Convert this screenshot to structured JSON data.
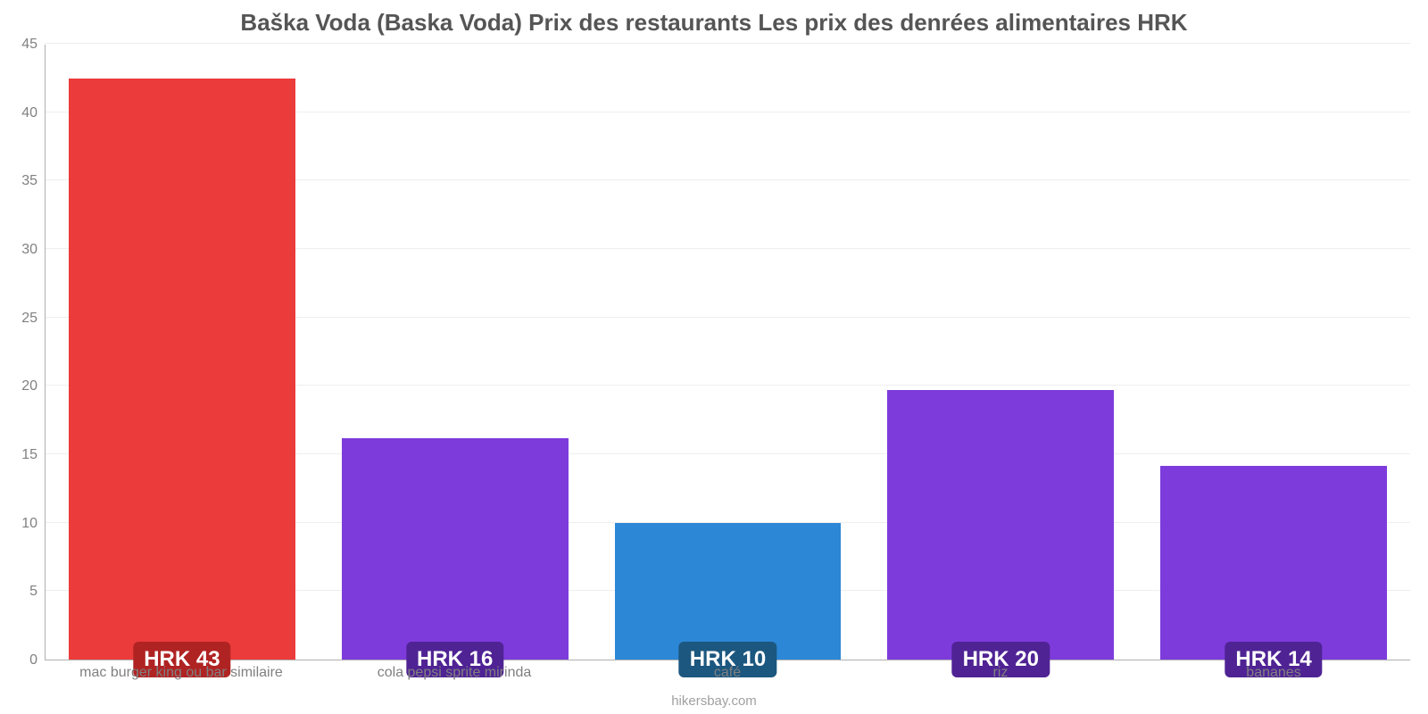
{
  "chart": {
    "type": "bar",
    "title": "Baška Voda (Baska Voda) Prix des restaurants Les prix des denrées alimentaires HRK",
    "title_color": "#555555",
    "title_fontsize": 26,
    "background_color": "#ffffff",
    "grid_color": "#eeeeee",
    "axis_color": "#b0b0b0",
    "label_color": "#808080",
    "label_fontsize": 16,
    "ylim": [
      0,
      45
    ],
    "ytick_step": 5,
    "yticks": [
      0,
      5,
      10,
      15,
      20,
      25,
      30,
      35,
      40,
      45
    ],
    "bar_width": 0.83,
    "categories": [
      "mac burger king ou bar similaire",
      "cola pepsi sprite mirinda",
      "café",
      "riz",
      "bananes"
    ],
    "values": [
      42.5,
      16.2,
      10.0,
      19.7,
      14.2
    ],
    "value_labels": [
      "HRK 43",
      "HRK 16",
      "HRK 10",
      "HRK 20",
      "HRK 14"
    ],
    "bar_colors": [
      "#ec3b3b",
      "#7e3bdc",
      "#2c87d6",
      "#7e3bdc",
      "#7e3bdc"
    ],
    "badge_colors": [
      "#b02323",
      "#4f2394",
      "#1c577f",
      "#4f2394",
      "#4f2394"
    ],
    "badge_text_color": "#ffffff",
    "badge_fontsize": 24,
    "attribution": "hikersbay.com",
    "attribution_color": "#a0a0a0"
  }
}
